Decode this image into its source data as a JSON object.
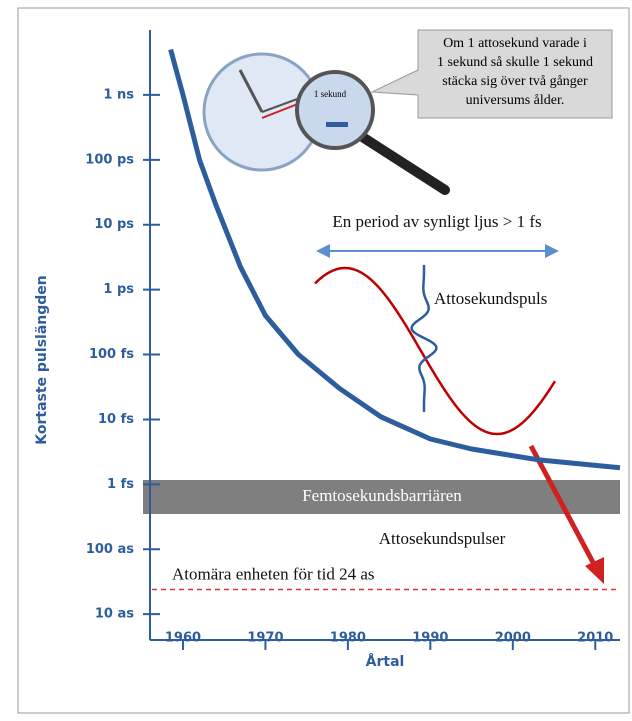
{
  "chart_data": {
    "type": "line",
    "x": [
      1958.5,
      1960,
      1962,
      1964,
      1967,
      1970,
      1974,
      1979,
      1984,
      1990,
      1995,
      2003,
      2013
    ],
    "values": [
      5000000000,
      1000000000,
      100000000,
      20000000,
      2200000,
      400000,
      100000,
      30000,
      11000,
      5000,
      3500,
      2400,
      1800
    ],
    "color": "#2e5d9e",
    "xlim": [
      1956,
      2013
    ],
    "xticks": [
      1960,
      1970,
      1980,
      1990,
      2000,
      2010
    ],
    "ylim": [
      4,
      10000000000
    ],
    "log_y": true,
    "yticks": [
      {
        "value": 10,
        "label": "10 as"
      },
      {
        "value": 100,
        "label": "100 as"
      },
      {
        "value": 1000,
        "label": "1 fs"
      },
      {
        "value": 10000,
        "label": "10 fs"
      },
      {
        "value": 100000,
        "label": "100 fs"
      },
      {
        "value": 1000000,
        "label": "1 ps"
      },
      {
        "value": 10000000,
        "label": "10 ps"
      },
      {
        "value": 100000000,
        "label": "100 ps"
      },
      {
        "value": 1000000000,
        "label": "1 ns"
      }
    ],
    "xlabel": "Årtal",
    "ylabel": "Kortaste pulslängden",
    "reference_line": {
      "value": 24,
      "color": "#e03030",
      "label": "Atomära enheten för tid 24 as"
    },
    "band_label": "Femtosekundsbarriären",
    "below_band_label": "Attosekundspulser",
    "period_label": "En period av synligt ljus > 1 fs",
    "pulse_label": "Attosekundspuls",
    "clock_label": "1 sekund",
    "callout": [
      "Om 1 attosekund varade i",
      "1 sekund så skulle 1 sekund",
      "stäcka sig över två gånger",
      "universums ålder."
    ]
  }
}
